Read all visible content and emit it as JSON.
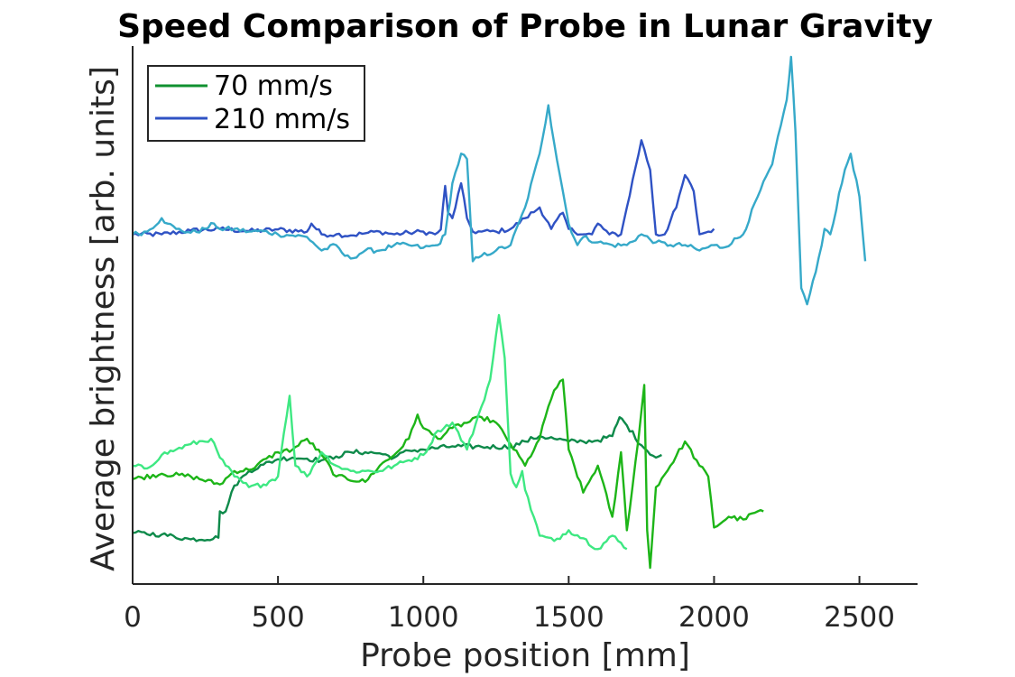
{
  "chart_data": {
    "type": "line",
    "title": "Speed Comparison of Probe in Lunar Gravity",
    "xlabel": "Probe position [mm]",
    "ylabel": "Average brightness [arb. units]",
    "xlim": [
      0,
      2700
    ],
    "ylim": [
      0,
      100
    ],
    "xticks": [
      0,
      500,
      1000,
      1500,
      2000,
      2500
    ],
    "grid": false,
    "legend": {
      "position": "top-left",
      "entries": [
        {
          "label": "70 mm/s",
          "color": "#109130"
        },
        {
          "label": "210 mm/s",
          "color": "#2f52c4"
        }
      ]
    },
    "series": [
      {
        "group": "210 mm/s",
        "color": "#2f52c4",
        "x": [
          0,
          100,
          200,
          300,
          400,
          500,
          600,
          615,
          650,
          700,
          750,
          800,
          850,
          900,
          950,
          1000,
          1040,
          1060,
          1075,
          1085,
          1100,
          1130,
          1150,
          1170,
          1200,
          1250,
          1300,
          1350,
          1400,
          1440,
          1480,
          1500,
          1550,
          1580,
          1600,
          1640,
          1680,
          1700,
          1750,
          1780,
          1800,
          1830,
          1870,
          1900,
          1930,
          1950,
          1980,
          2000
        ],
        "y": [
          65,
          65,
          65.7,
          66,
          65.6,
          65.9,
          65.5,
          67,
          65,
          65,
          64.8,
          65.2,
          65.5,
          65,
          65.3,
          65.5,
          65,
          65.9,
          74,
          69,
          68,
          74.5,
          68,
          65.5,
          65.5,
          65.5,
          66,
          68,
          70,
          66,
          69,
          66,
          65,
          65,
          67,
          65,
          65,
          70,
          82.5,
          77,
          65,
          65,
          70,
          76,
          73,
          65,
          65.5,
          66
        ]
      },
      {
        "group": "210 mm/s",
        "color": "#36a9c9",
        "x": [
          0,
          50,
          100,
          120,
          150,
          200,
          250,
          280,
          300,
          350,
          400,
          450,
          500,
          550,
          600,
          620,
          650,
          700,
          730,
          750,
          800,
          850,
          900,
          950,
          1000,
          1050,
          1075,
          1100,
          1130,
          1150,
          1170,
          1200,
          1250,
          1300,
          1350,
          1400,
          1430,
          1450,
          1500,
          1530,
          1550,
          1600,
          1650,
          1700,
          1750,
          1800,
          1850,
          1900,
          1950,
          2000,
          2030,
          2100,
          2150,
          2200,
          2250,
          2265,
          2280,
          2300,
          2320,
          2350,
          2380,
          2400,
          2450,
          2470,
          2500,
          2520
        ],
        "y": [
          65,
          65.5,
          68,
          67,
          66,
          65.3,
          66,
          67,
          66,
          66,
          65.5,
          65.6,
          65,
          64.8,
          64.5,
          63.5,
          62,
          63,
          61,
          60.5,
          62,
          62,
          63,
          63,
          62.5,
          63,
          65,
          74.5,
          80,
          79,
          60,
          61,
          62,
          63,
          70,
          80,
          89,
          82,
          67,
          63,
          64.5,
          63.5,
          63,
          63,
          65,
          63.5,
          63,
          63,
          62,
          63,
          62.5,
          65,
          72,
          78,
          90,
          98,
          84,
          55,
          52,
          58,
          66,
          65,
          77,
          80,
          72,
          60
        ]
      },
      {
        "group": "70 mm/s",
        "color": "#0e8a4a",
        "x": [
          0,
          100,
          200,
          295,
          300,
          320,
          350,
          400,
          450,
          500,
          550,
          600,
          650,
          700,
          750,
          800,
          850,
          900,
          950,
          1000,
          1100,
          1200,
          1300,
          1350,
          1400,
          1450,
          1500,
          1550,
          1600,
          1650,
          1675,
          1700,
          1750,
          1800,
          1820
        ],
        "y": [
          9.5,
          9.2,
          8.3,
          8.6,
          13.5,
          13.5,
          18.3,
          21,
          22.2,
          23.2,
          23.5,
          23.3,
          23,
          23.7,
          24.5,
          24.5,
          24.3,
          23.5,
          24.8,
          25,
          25.6,
          25.5,
          25.5,
          26.5,
          27.5,
          27,
          26.5,
          26.5,
          26.7,
          27.5,
          31,
          29.5,
          25.8,
          23.5,
          24
        ]
      },
      {
        "group": "70 mm/s",
        "color": "#1db518",
        "x": [
          0,
          100,
          200,
          300,
          350,
          400,
          500,
          550,
          600,
          650,
          700,
          800,
          850,
          900,
          950,
          980,
          1000,
          1050,
          1100,
          1200,
          1250,
          1300,
          1350,
          1400,
          1430,
          1450,
          1480,
          1500,
          1550,
          1600,
          1650,
          1660,
          1680,
          1700,
          1740,
          1760,
          1770,
          1780,
          1800,
          1850,
          1900,
          1950,
          1980,
          2000,
          2050,
          2100,
          2150,
          2170
        ],
        "y": [
          19.5,
          20.5,
          20,
          18.5,
          21,
          21.2,
          24.5,
          25,
          27,
          24,
          20,
          19,
          22,
          24,
          27,
          31.5,
          29,
          27,
          29,
          31,
          30,
          26,
          22,
          27,
          33,
          36,
          38,
          25,
          17,
          22,
          12.5,
          16,
          24.5,
          10,
          27,
          37,
          10,
          3,
          18,
          22,
          26.5,
          22,
          20,
          10.5,
          12.5,
          12,
          13.5,
          13.5
        ]
      },
      {
        "group": "70 mm/s",
        "color": "#3ee882",
        "x": [
          0,
          50,
          100,
          150,
          200,
          270,
          300,
          350,
          400,
          450,
          500,
          520,
          540,
          560,
          600,
          650,
          700,
          750,
          800,
          850,
          900,
          950,
          1000,
          1050,
          1100,
          1150,
          1200,
          1230,
          1260,
          1280,
          1300,
          1320,
          1340,
          1350,
          1400,
          1450,
          1500,
          1550,
          1600,
          1650,
          1700
        ],
        "y": [
          22,
          21.5,
          24,
          25,
          26,
          27,
          23.5,
          20,
          18,
          18.5,
          20,
          28,
          35,
          22,
          20,
          24.5,
          22,
          21,
          21,
          21,
          22,
          23,
          24,
          28.5,
          30,
          25,
          33,
          38,
          50,
          42,
          20.5,
          18,
          21,
          17.5,
          9,
          8,
          10,
          8.5,
          6.5,
          9,
          6.5
        ]
      }
    ]
  }
}
